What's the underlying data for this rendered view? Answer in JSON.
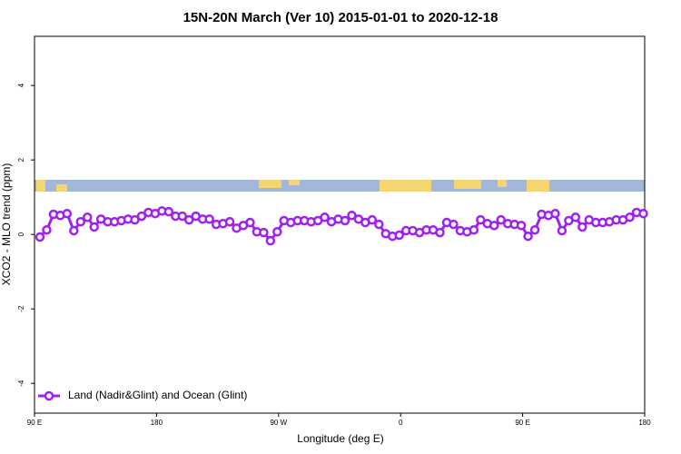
{
  "chart_data": {
    "type": "line",
    "title": "15N-20N March (Ver 10)   2015-01-01 to 2020-12-18",
    "x_label": "Longitude (deg E)",
    "y_label": "XCO2 - MLO trend (ppm)",
    "xlim": [
      90,
      540
    ],
    "ylim": [
      -4.8,
      5.32
    ],
    "xticks": [
      {
        "value": 90,
        "label": "90 E"
      },
      180,
      {
        "value": 270,
        "label": "90 W"
      },
      {
        "value": 360,
        "label": "0"
      },
      {
        "value": 450,
        "label": "90 E"
      },
      {
        "value": 540,
        "label": "180"
      }
    ],
    "yticks": [
      -4,
      -2,
      0,
      2,
      4
    ],
    "legend": "lower left",
    "x": [
      94,
      99,
      104,
      109,
      114,
      119,
      124,
      129,
      134,
      139,
      144,
      149,
      154,
      159,
      164,
      169,
      174,
      179,
      184,
      189,
      194,
      199,
      204,
      209,
      214,
      219,
      224,
      229,
      234,
      239,
      244,
      249,
      254,
      259,
      264,
      269,
      274,
      279,
      284,
      289,
      294,
      299,
      304,
      309,
      314,
      319,
      324,
      329,
      334,
      339,
      344,
      349,
      354,
      359,
      364,
      369,
      374,
      379,
      384,
      389,
      394,
      399,
      404,
      409,
      414,
      419,
      424,
      429,
      434,
      439,
      444,
      449,
      454,
      459,
      464,
      469,
      474,
      479,
      484,
      489,
      494,
      499,
      504,
      509,
      514,
      519,
      524,
      529,
      534,
      539
    ],
    "series": [
      {
        "name": "Land (Nadir&Glint) and Ocean (Glint)",
        "color": "#a020f0",
        "values": [
          -0.07,
          0.12,
          0.54,
          0.51,
          0.56,
          0.1,
          0.34,
          0.46,
          0.2,
          0.41,
          0.34,
          0.34,
          0.37,
          0.41,
          0.39,
          0.49,
          0.59,
          0.56,
          0.63,
          0.61,
          0.49,
          0.49,
          0.39,
          0.49,
          0.41,
          0.41,
          0.27,
          0.29,
          0.34,
          0.17,
          0.24,
          0.32,
          0.07,
          0.05,
          -0.17,
          0.07,
          0.37,
          0.32,
          0.37,
          0.37,
          0.34,
          0.37,
          0.46,
          0.34,
          0.41,
          0.37,
          0.51,
          0.41,
          0.32,
          0.39,
          0.27,
          0.02,
          -0.05,
          -0.02,
          0.1,
          0.1,
          0.05,
          0.12,
          0.12,
          0.05,
          0.32,
          0.27,
          0.1,
          0.07,
          0.12,
          0.39,
          0.29,
          0.24,
          0.39,
          0.29,
          0.27,
          0.24,
          -0.05,
          0.12,
          0.54,
          0.51,
          0.56,
          0.1,
          0.37,
          0.46,
          0.2,
          0.39,
          0.32,
          0.32,
          0.34,
          0.39,
          0.39,
          0.46,
          0.59,
          0.56
        ]
      }
    ]
  }
}
